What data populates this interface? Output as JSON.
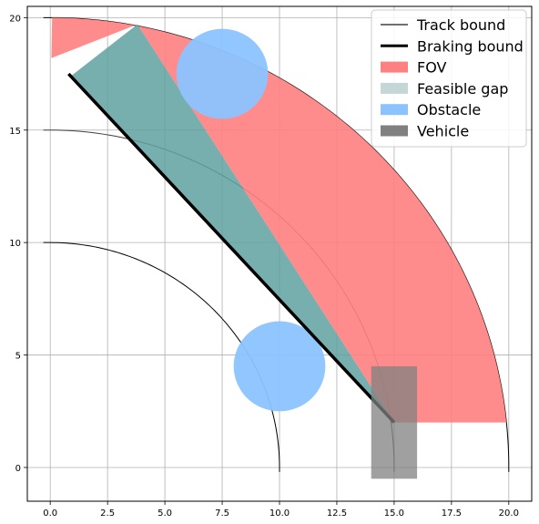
{
  "chart_data": {
    "type": "scatter",
    "title": "",
    "xlabel": "",
    "ylabel": "",
    "xlim": [
      -1.0,
      21.0
    ],
    "ylim": [
      -1.5,
      20.5
    ],
    "xticks": [
      0.0,
      2.5,
      5.0,
      7.5,
      10.0,
      12.5,
      15.0,
      17.5,
      20.0
    ],
    "xtick_labels": [
      "0.0",
      "2.5",
      "5.0",
      "7.5",
      "10.0",
      "12.5",
      "15.0",
      "17.5",
      "20.0"
    ],
    "yticks": [
      0,
      5,
      10,
      15,
      20
    ],
    "ytick_labels": [
      "0",
      "5",
      "10",
      "15",
      "20"
    ],
    "grid": true,
    "legend_position": "top-right",
    "legend": [
      {
        "label": "Track bound",
        "kind": "line",
        "color": "#404040"
      },
      {
        "label": "Braking bound",
        "kind": "thick-line",
        "color": "#000000"
      },
      {
        "label": "FOV",
        "kind": "patch",
        "color": "#ff8080"
      },
      {
        "label": "Feasible gap",
        "kind": "patch",
        "color": "#c5d6d6"
      },
      {
        "label": "Obstacle",
        "kind": "patch",
        "color": "#8cc3ff"
      },
      {
        "label": "Vehicle",
        "kind": "patch",
        "color": "#808080"
      }
    ],
    "track_bounds": [
      {
        "name": "inner",
        "center": [
          0,
          0
        ],
        "radius": 10,
        "color": "#000000"
      },
      {
        "name": "middle",
        "center": [
          0,
          0
        ],
        "radius": 15,
        "color": "#404040"
      },
      {
        "name": "outer",
        "center": [
          0,
          0
        ],
        "radius": 20,
        "color": "#000000"
      }
    ],
    "fov": {
      "apex": [
        15,
        2
      ],
      "points": [
        [
          20,
          2
        ],
        [
          17.3,
          10
        ],
        [
          12.0,
          16.2
        ],
        [
          6.0,
          19.0
        ],
        [
          0.1,
          20.0
        ],
        [
          0.05,
          18.2
        ],
        [
          3.8,
          19.7
        ],
        [
          10.0,
          2.0
        ]
      ],
      "color": "#ff8080"
    },
    "feasible_gap": {
      "points": [
        [
          15,
          2
        ],
        [
          0.9,
          17.4
        ],
        [
          3.8,
          19.7
        ]
      ],
      "color": "#5fa0a0"
    },
    "braking_bound": {
      "points": [
        [
          0.8,
          17.5
        ],
        [
          15,
          2
        ]
      ],
      "color": "#000000"
    },
    "obstacles": [
      {
        "center": [
          7.5,
          17.5
        ],
        "radius": 2.0,
        "color": "#8cc3ff"
      },
      {
        "center": [
          10.0,
          4.5
        ],
        "radius": 2.0,
        "color": "#8cc3ff"
      }
    ],
    "vehicle": {
      "rect": {
        "x0": 14.0,
        "x1": 16.0,
        "y0": -0.5,
        "y1": 4.5
      },
      "color": "#808080"
    }
  }
}
